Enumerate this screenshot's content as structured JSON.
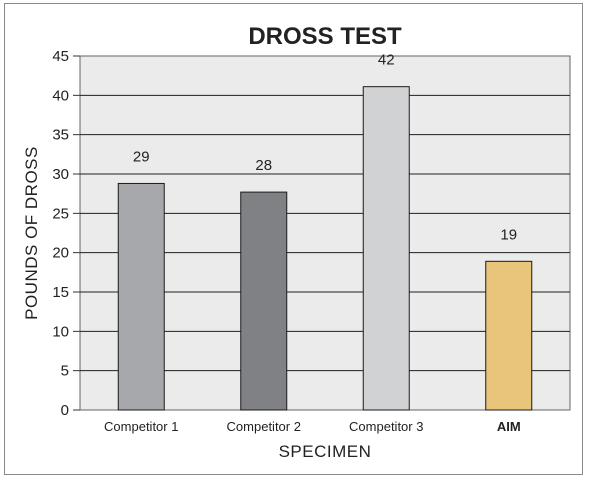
{
  "chart_data": {
    "type": "bar",
    "title": "DROSS TEST",
    "xlabel": "SPECIMEN",
    "ylabel": "POUNDS OF DROSS",
    "categories": [
      "Competitor 1",
      "Competitor 2",
      "Competitor 3",
      "AIM"
    ],
    "values": [
      29,
      28,
      42,
      19
    ],
    "bar_heights_read": [
      28.8,
      27.7,
      41.1,
      18.9
    ],
    "data_labels": [
      "29",
      "28",
      "42",
      "19"
    ],
    "yticks": [
      "0",
      "5",
      "10",
      "15",
      "20",
      "25",
      "30",
      "35",
      "40",
      "45"
    ],
    "ylim": [
      0,
      45
    ],
    "grid": true,
    "legend": "none",
    "colors": {
      "bars": [
        "#a7a8ac",
        "#808184",
        "#d1d2d4",
        "#e8c57a"
      ],
      "plot_background": "#ebebeb",
      "gridline": "#1f1f1f"
    }
  }
}
